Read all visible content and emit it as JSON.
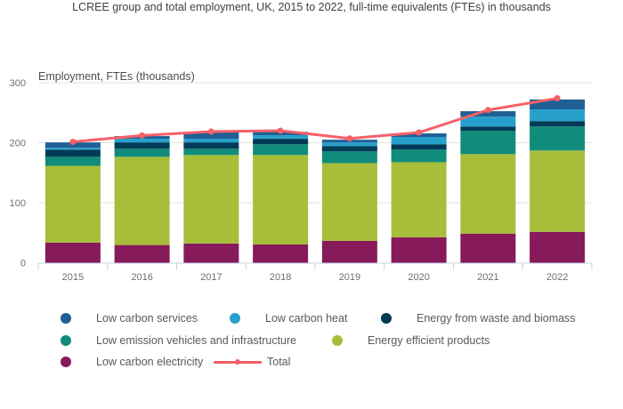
{
  "chart_data": {
    "type": "bar",
    "stacked": true,
    "title": "LCREE group and total employment, UK, 2015 to 2022, full-time equivalents (FTEs) in thousands",
    "xlabel": "",
    "ylabel": "Employment, FTEs (thousands)",
    "ylim": [
      0,
      300
    ],
    "yticks": [
      0,
      100,
      200,
      300
    ],
    "grid": true,
    "legend_position": "bottom",
    "categories": [
      "2015",
      "2016",
      "2017",
      "2018",
      "2019",
      "2020",
      "2021",
      "2022"
    ],
    "series": [
      {
        "name": "Low carbon electricity",
        "color": "#871a5b",
        "type": "bar",
        "values": [
          33.5,
          29.5,
          32,
          30.5,
          36.5,
          42.5,
          48.5,
          51.5
        ]
      },
      {
        "name": "Energy efficient products",
        "color": "#a8bd3a",
        "type": "bar",
        "values": [
          128,
          147,
          147.5,
          149,
          129.5,
          125,
          132.5,
          135.5
        ]
      },
      {
        "name": "Low emission vehicles and infrastructure",
        "color": "#118c7b",
        "type": "bar",
        "values": [
          15,
          13.5,
          10.5,
          18,
          19.5,
          21,
          39,
          40
        ]
      },
      {
        "name": "Energy from waste and biomass",
        "color": "#003c57",
        "type": "bar",
        "values": [
          12,
          10.5,
          10.5,
          9,
          9,
          9,
          7,
          9
        ]
      },
      {
        "name": "Low carbon heat",
        "color": "#27a0cc",
        "type": "bar",
        "values": [
          3,
          6,
          6,
          6,
          6,
          12,
          16.5,
          19.5
        ]
      },
      {
        "name": "Low carbon services",
        "color": "#206095",
        "type": "bar",
        "values": [
          9,
          4.5,
          11.5,
          5.5,
          4.5,
          6,
          9,
          16.5
        ]
      },
      {
        "name": "Total",
        "color": "#f66068",
        "type": "line",
        "values": [
          201.5,
          212,
          218.5,
          220,
          207,
          217,
          254.5,
          274
        ]
      }
    ]
  },
  "legend": {
    "rows": [
      [
        {
          "label": "Low carbon services",
          "color": "#206095",
          "kind": "dot"
        },
        {
          "label": "Low carbon heat",
          "color": "#27a0cc",
          "kind": "dot"
        },
        {
          "label": "Energy from waste and biomass",
          "color": "#003c57",
          "kind": "dot"
        }
      ],
      [
        {
          "label": "Low emission vehicles and infrastructure",
          "color": "#118c7b",
          "kind": "dot"
        },
        {
          "label": "Energy efficient products",
          "color": "#a8bd3a",
          "kind": "dot"
        }
      ],
      [
        {
          "label": "Low carbon electricity",
          "color": "#871a5b",
          "kind": "dot"
        },
        {
          "label": "Total",
          "color": "#f66068",
          "kind": "line"
        }
      ]
    ]
  }
}
